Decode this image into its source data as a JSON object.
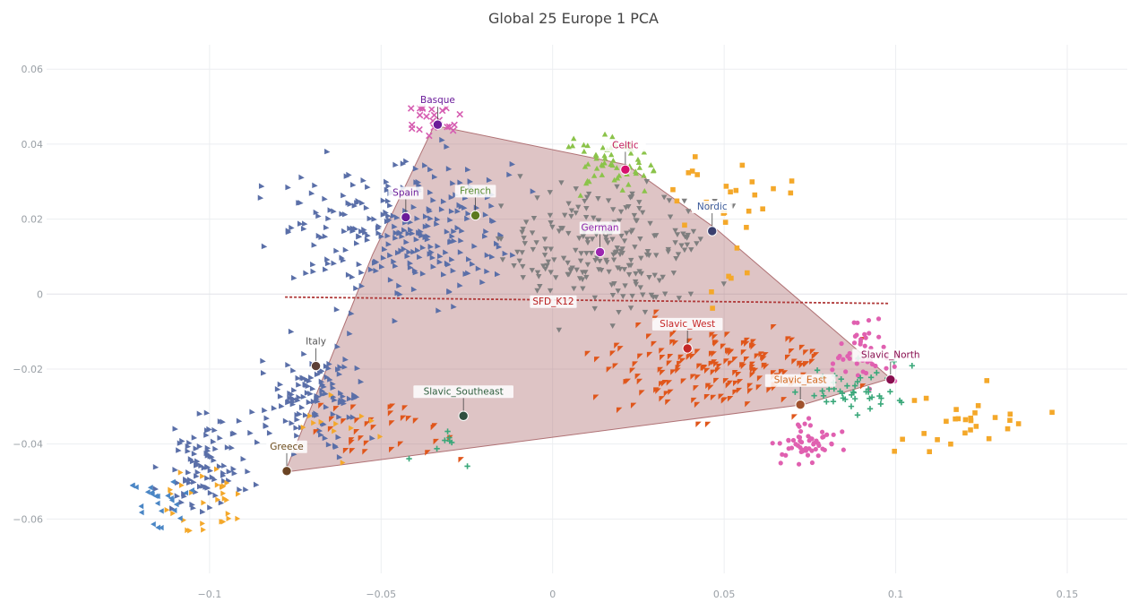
{
  "chart_data": {
    "type": "scatter",
    "title": "Global 25 Europe 1 PCA",
    "xlabel": "",
    "ylabel": "",
    "xlim": [
      -0.1475,
      0.1675
    ],
    "ylim": [
      -0.0745,
      0.0665
    ],
    "xticks": [
      -0.1,
      -0.05,
      0,
      0.05,
      0.1,
      0.15
    ],
    "xtick_labels": [
      "−0.1",
      "−0.05",
      "0",
      "0.05",
      "0.1",
      "0.15"
    ],
    "yticks": [
      0.06,
      0.04,
      0.02,
      0,
      -0.02,
      -0.04,
      -0.06
    ],
    "ytick_labels": [
      "0.06",
      "0.04",
      "0.02",
      "0",
      "−0.02",
      "−0.04",
      "−0.06"
    ],
    "grid": true,
    "legend": "none",
    "hull": {
      "color": "#a0565a",
      "vertices": [
        [
          -0.0345,
          0.045
        ],
        [
          0.0215,
          0.0345
        ],
        [
          0.0475,
          0.0175
        ],
        [
          0.0985,
          -0.0225
        ],
        [
          0.073,
          -0.0295
        ],
        [
          -0.078,
          -0.0475
        ],
        [
          -0.0525,
          0.0105
        ]
      ]
    },
    "trend_line": {
      "label": "SFD_K12",
      "color": "#b03a3a",
      "from": [
        -0.078,
        -0.0008
      ],
      "to": [
        0.098,
        -0.0025
      ]
    },
    "populations": [
      {
        "label": "Basque",
        "x": -0.0335,
        "y": 0.0452,
        "color": "#6a1b9a",
        "label_color": "#6a1b9a"
      },
      {
        "label": "Celtic",
        "x": 0.0212,
        "y": 0.0332,
        "color": "#d6126e",
        "label_color": "#c2185b"
      },
      {
        "label": "Spain",
        "x": -0.0428,
        "y": 0.0205,
        "color": "#6a1b9a",
        "label_color": "#6a1b9a"
      },
      {
        "label": "French",
        "x": -0.0225,
        "y": 0.021,
        "color": "#5d7a1f",
        "label_color": "#558b2f"
      },
      {
        "label": "Nordic",
        "x": 0.0465,
        "y": 0.0168,
        "color": "#3a3f6e",
        "label_color": "#3a5a9a"
      },
      {
        "label": "German",
        "x": 0.0138,
        "y": 0.0112,
        "color": "#9c27b0",
        "label_color": "#8e24aa"
      },
      {
        "label": "SFD_K12",
        "x": 0.0002,
        "y": -0.0018,
        "color": "#b03a3a",
        "label_color": "#b71c1c",
        "no_marker": true
      },
      {
        "label": "Slavic_West",
        "x": 0.0393,
        "y": -0.0145,
        "color": "#c62828",
        "label_color": "#c62828"
      },
      {
        "label": "Italy",
        "x": -0.069,
        "y": -0.0192,
        "color": "#5d4037",
        "label_color": "#555555"
      },
      {
        "label": "Slavic_North",
        "x": 0.0985,
        "y": -0.0228,
        "color": "#880e4f",
        "label_color": "#880e4f"
      },
      {
        "label": "Slavic_East",
        "x": 0.0722,
        "y": -0.0295,
        "color": "#a0522d",
        "label_color": "#d2691e"
      },
      {
        "label": "Slavic_Southeast",
        "x": -0.026,
        "y": -0.0325,
        "color": "#2f4f3f",
        "label_color": "#2f5f3f"
      },
      {
        "label": "Greece",
        "x": -0.0775,
        "y": -0.0472,
        "color": "#6b4423",
        "label_color": "#6b4a1a"
      }
    ],
    "series": [
      {
        "symbol": "tri-right",
        "color": "#5a6fa8",
        "clusters": [
          [
            -0.045,
            0.018,
            0.028,
            0.016,
            260
          ],
          [
            -0.07,
            -0.028,
            0.014,
            0.012,
            120
          ],
          [
            -0.1,
            -0.045,
            0.012,
            0.01,
            90
          ]
        ]
      },
      {
        "symbol": "tri-down",
        "color": "#7f7f7f",
        "clusters": [
          [
            0.015,
            0.012,
            0.025,
            0.015,
            220
          ]
        ]
      },
      {
        "symbol": "tri-up",
        "color": "#8bc34a",
        "clusters": [
          [
            0.018,
            0.035,
            0.012,
            0.006,
            60
          ]
        ]
      },
      {
        "symbol": "x",
        "color": "#d65db1",
        "clusters": [
          [
            -0.036,
            0.048,
            0.008,
            0.006,
            22
          ]
        ]
      },
      {
        "symbol": "tri-right-down",
        "color": "#e0561b",
        "clusters": [
          [
            0.05,
            -0.02,
            0.03,
            0.01,
            170
          ],
          [
            -0.05,
            -0.035,
            0.02,
            0.008,
            35
          ]
        ]
      },
      {
        "symbol": "circle",
        "color": "#e060b0",
        "clusters": [
          [
            0.075,
            -0.04,
            0.008,
            0.006,
            55
          ],
          [
            0.09,
            -0.015,
            0.01,
            0.008,
            45
          ]
        ]
      },
      {
        "symbol": "plus",
        "color": "#3aa87a",
        "clusters": [
          [
            0.088,
            -0.025,
            0.012,
            0.006,
            45
          ],
          [
            -0.03,
            -0.043,
            0.01,
            0.005,
            8
          ]
        ]
      },
      {
        "symbol": "square",
        "color": "#f4a82a",
        "clusters": [
          [
            0.05,
            0.02,
            0.02,
            0.02,
            30
          ],
          [
            0.12,
            -0.035,
            0.02,
            0.008,
            28
          ]
        ]
      },
      {
        "symbol": "tri-right-small",
        "color": "#f4a82a",
        "clusters": [
          [
            -0.1,
            -0.055,
            0.012,
            0.008,
            30
          ],
          [
            -0.065,
            -0.035,
            0.012,
            0.008,
            12
          ]
        ]
      },
      {
        "symbol": "tri-left",
        "color": "#4a86c5",
        "clusters": [
          [
            -0.115,
            -0.055,
            0.008,
            0.006,
            25
          ]
        ]
      }
    ]
  }
}
